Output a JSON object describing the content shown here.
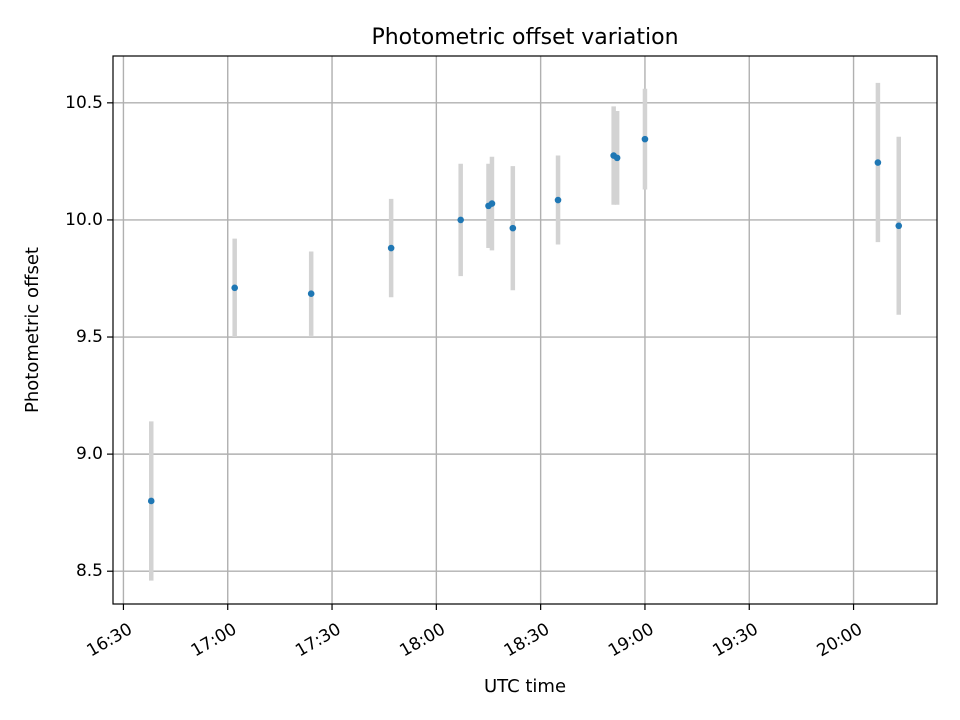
{
  "chart_data": {
    "type": "scatter",
    "title": "Photometric offset variation",
    "xlabel": "UTC time",
    "ylabel": "Photometric offset",
    "x_axis_type": "time",
    "xlim": [
      "16:27",
      "20:24"
    ],
    "ylim": [
      8.36,
      10.7
    ],
    "xticks": [
      "16:30",
      "17:00",
      "17:30",
      "18:00",
      "18:30",
      "19:00",
      "19:30",
      "20:00"
    ],
    "yticks": [
      8.5,
      9.0,
      9.5,
      10.0,
      10.5
    ],
    "ytick_labels": [
      "8.5",
      "9.0",
      "9.5",
      "10.0",
      "10.5"
    ],
    "grid": true,
    "legend": "none",
    "errorbar_color": "#d3d3d3",
    "marker_color": "#1f77b4",
    "points": [
      {
        "x": "16:38",
        "y": 8.8,
        "yerr": 0.34
      },
      {
        "x": "17:02",
        "y": 9.71,
        "yerr": 0.21
      },
      {
        "x": "17:24",
        "y": 9.685,
        "yerr": 0.18
      },
      {
        "x": "17:47",
        "y": 9.88,
        "yerr": 0.21
      },
      {
        "x": "18:07",
        "y": 10.0,
        "yerr": 0.24
      },
      {
        "x": "18:15",
        "y": 10.06,
        "yerr": 0.18
      },
      {
        "x": "18:16",
        "y": 10.07,
        "yerr": 0.2
      },
      {
        "x": "18:22",
        "y": 9.965,
        "yerr": 0.265
      },
      {
        "x": "18:35",
        "y": 10.085,
        "yerr": 0.19
      },
      {
        "x": "18:51",
        "y": 10.275,
        "yerr": 0.21
      },
      {
        "x": "18:52",
        "y": 10.265,
        "yerr": 0.2
      },
      {
        "x": "19:00",
        "y": 10.345,
        "yerr": 0.215
      },
      {
        "x": "20:07",
        "y": 10.245,
        "yerr": 0.34
      },
      {
        "x": "20:13",
        "y": 9.975,
        "yerr": 0.38
      }
    ]
  }
}
